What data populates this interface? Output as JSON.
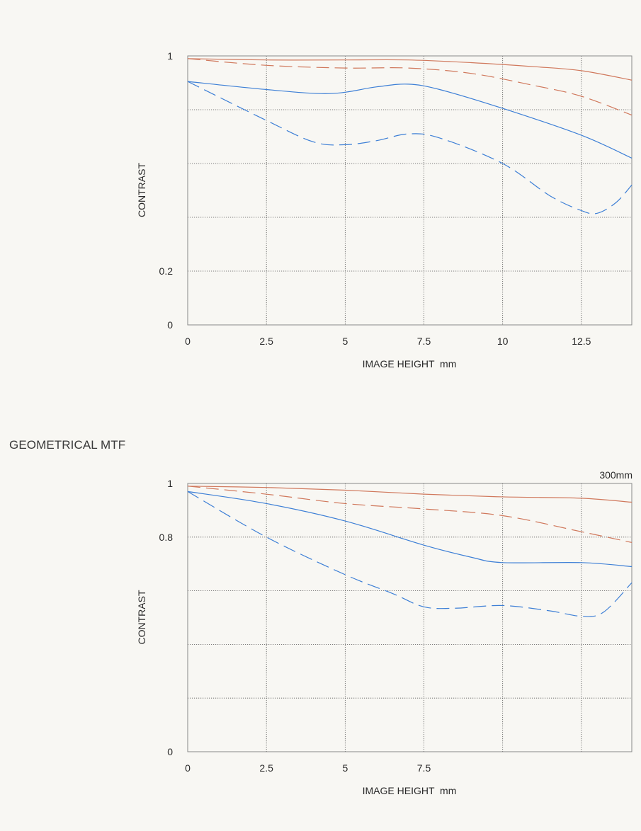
{
  "section_heading": "GEOMETRICAL MTF",
  "colors": {
    "sagittal_low": "#d0785c",
    "sagittal_high": "#3d7fd6",
    "grid": "#555555",
    "frame": "#888888",
    "background": "#f8f7f3"
  },
  "chart_data": [
    {
      "type": "line",
      "xlabel": "IMAGE HEIGHT  mm",
      "ylabel": "CONTRAST",
      "corner_label": "",
      "xlim": [
        0,
        14.1
      ],
      "ylim": [
        0,
        1
      ],
      "x_ticks": [
        {
          "value": 0,
          "label": "0"
        },
        {
          "value": 2.5,
          "label": "2.5"
        },
        {
          "value": 5,
          "label": "5"
        },
        {
          "value": 7.5,
          "label": "7.5"
        },
        {
          "value": 10,
          "label": "10"
        },
        {
          "value": 12.5,
          "label": "12.5"
        }
      ],
      "y_ticks": [
        {
          "value": 0,
          "label": "0"
        },
        {
          "value": 0.2,
          "label": "0.2"
        },
        {
          "value": 0.4,
          "label": ""
        },
        {
          "value": 0.6,
          "label": ""
        },
        {
          "value": 0.8,
          "label": ""
        },
        {
          "value": 1,
          "label": "1"
        }
      ],
      "grid": true,
      "series": [
        {
          "color": "#d0785c",
          "dash": false,
          "x": [
            0,
            2.5,
            5,
            7,
            9,
            11,
            12.5,
            14.1
          ],
          "y": [
            0.99,
            0.985,
            0.985,
            0.985,
            0.975,
            0.96,
            0.945,
            0.91
          ]
        },
        {
          "color": "#d0785c",
          "dash": true,
          "x": [
            0,
            2.5,
            5,
            7,
            9,
            11,
            12.5,
            14.1
          ],
          "y": [
            0.99,
            0.965,
            0.955,
            0.955,
            0.935,
            0.89,
            0.85,
            0.78
          ]
        },
        {
          "color": "#3d7fd6",
          "dash": false,
          "x": [
            0,
            2.5,
            4.5,
            6,
            7,
            8,
            10,
            12.5,
            14.1
          ],
          "y": [
            0.905,
            0.875,
            0.86,
            0.885,
            0.895,
            0.875,
            0.805,
            0.705,
            0.62
          ]
        },
        {
          "color": "#3d7fd6",
          "dash": true,
          "x": [
            0,
            2.5,
            4,
            5,
            6,
            7,
            8,
            10,
            11.5,
            12.5,
            13,
            13.6,
            14.1
          ],
          "y": [
            0.905,
            0.76,
            0.68,
            0.67,
            0.685,
            0.71,
            0.695,
            0.6,
            0.48,
            0.425,
            0.415,
            0.455,
            0.52
          ]
        }
      ]
    },
    {
      "type": "line",
      "xlabel": "IMAGE HEIGHT  mm",
      "ylabel": "CONTRAST",
      "corner_label": "300mm",
      "xlim": [
        0,
        14.1
      ],
      "ylim": [
        0,
        1
      ],
      "x_ticks": [
        {
          "value": 0,
          "label": "0"
        },
        {
          "value": 2.5,
          "label": "2.5"
        },
        {
          "value": 5,
          "label": "5"
        },
        {
          "value": 7.5,
          "label": "7.5"
        },
        {
          "value": 10,
          "label": ""
        },
        {
          "value": 12.5,
          "label": ""
        }
      ],
      "y_ticks": [
        {
          "value": 0,
          "label": "0"
        },
        {
          "value": 0.2,
          "label": ""
        },
        {
          "value": 0.4,
          "label": ""
        },
        {
          "value": 0.6,
          "label": ""
        },
        {
          "value": 0.8,
          "label": "0.8"
        },
        {
          "value": 1,
          "label": "1"
        }
      ],
      "grid": true,
      "series": [
        {
          "color": "#d0785c",
          "dash": false,
          "x": [
            0,
            2.5,
            5,
            7.5,
            10,
            12.5,
            14.1
          ],
          "y": [
            0.99,
            0.985,
            0.975,
            0.96,
            0.95,
            0.945,
            0.93
          ]
        },
        {
          "color": "#d0785c",
          "dash": true,
          "x": [
            0,
            2.5,
            5,
            7.5,
            10,
            12.5,
            14.1
          ],
          "y": [
            0.99,
            0.96,
            0.925,
            0.905,
            0.88,
            0.82,
            0.78
          ]
        },
        {
          "color": "#3d7fd6",
          "dash": false,
          "x": [
            0,
            2.5,
            5,
            7.5,
            9,
            10,
            12.5,
            14.1
          ],
          "y": [
            0.97,
            0.925,
            0.86,
            0.77,
            0.725,
            0.705,
            0.705,
            0.69
          ]
        },
        {
          "color": "#3d7fd6",
          "dash": true,
          "x": [
            0,
            2.5,
            5,
            6.5,
            7.5,
            8.5,
            10,
            11.5,
            12.5,
            13.2,
            14.1
          ],
          "y": [
            0.97,
            0.8,
            0.66,
            0.59,
            0.54,
            0.535,
            0.545,
            0.525,
            0.505,
            0.52,
            0.63
          ]
        }
      ]
    }
  ]
}
